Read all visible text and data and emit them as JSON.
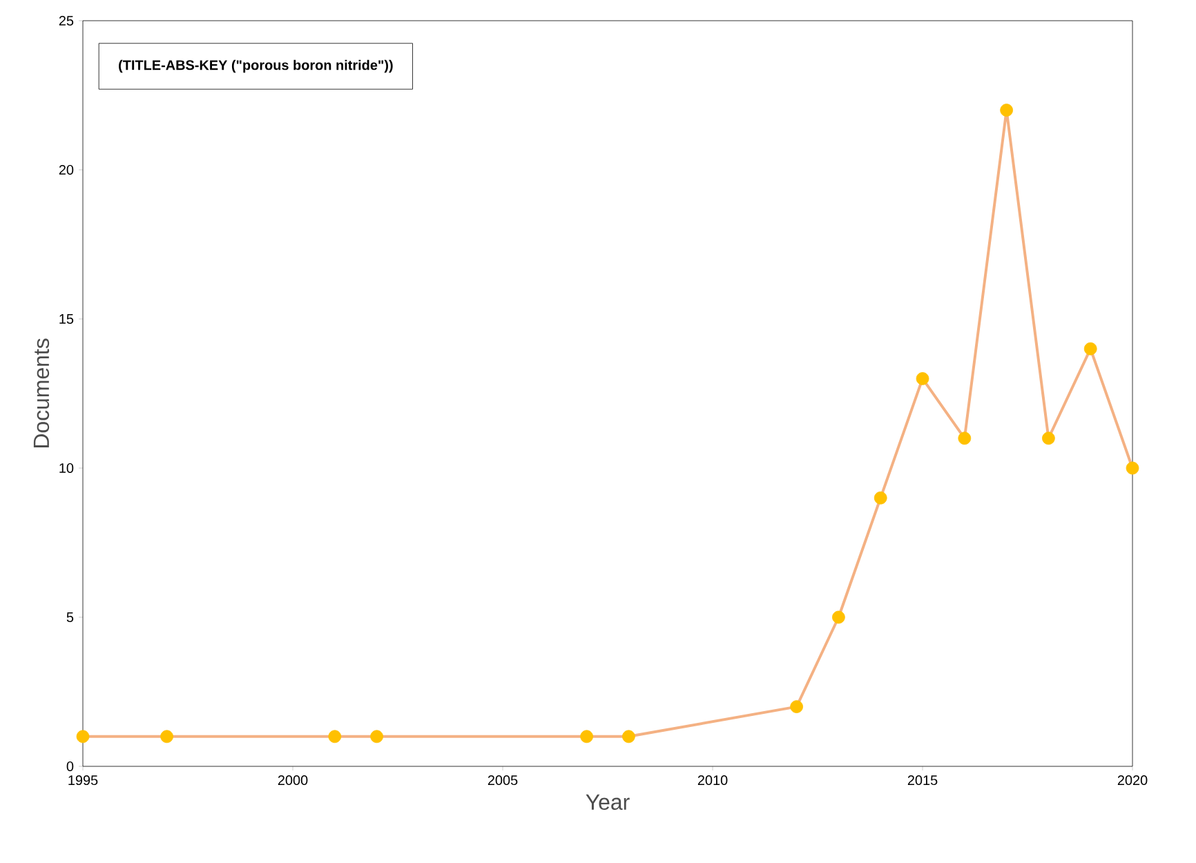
{
  "chart_data": {
    "type": "line",
    "xlabel": "Year",
    "ylabel": "Documents",
    "annotations": [
      "(TITLE-ABS-KEY (\"porous boron nitride\"))"
    ],
    "x": [
      1995,
      1997,
      2001,
      2002,
      2007,
      2008,
      2012,
      2013,
      2014,
      2015,
      2016,
      2017,
      2018,
      2019,
      2020
    ],
    "series": [
      {
        "color": "#f4b183",
        "colors": [
          "#ffc000",
          "#ffc000",
          "#ffc000",
          "#ffc000",
          "#ffc000",
          "#ffc000",
          "#ffc000",
          "#ffc000",
          "#ffc000",
          "#ffc000",
          "#ffc000",
          "#ffc000",
          "#ffc000",
          "#ffc000",
          "#ffc000"
        ],
        "values": [
          1,
          1,
          1,
          1,
          1,
          1,
          2,
          5,
          9,
          13,
          11,
          22,
          11,
          14,
          10
        ]
      }
    ],
    "xlim": [
      1995,
      2020
    ],
    "ylim": [
      0,
      25
    ],
    "xticks": [
      1995,
      2000,
      2005,
      2010,
      2015,
      2020
    ],
    "yticks": [
      0,
      5,
      10,
      15,
      20,
      25
    ],
    "marker": "circle",
    "line_style": "solid"
  }
}
